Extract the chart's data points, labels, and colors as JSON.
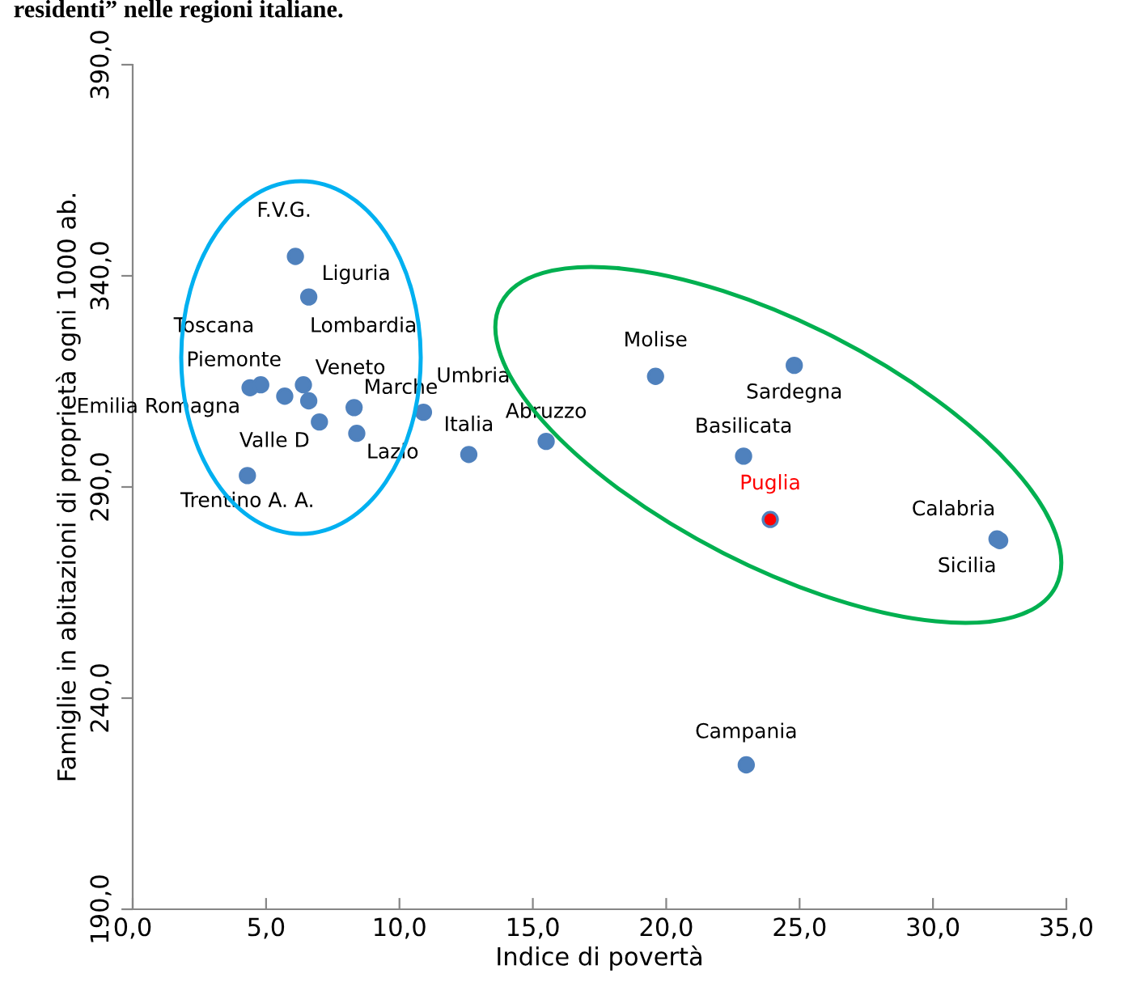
{
  "chart_data": {
    "type": "scatter",
    "title": "residenti” nelle regioni italiane.",
    "xlabel": "Indice di povertà",
    "ylabel": "Famiglie in abitazioni di proprietà ogni 1000 ab.",
    "xlim": [
      0,
      35
    ],
    "ylim": [
      190,
      390
    ],
    "xticks": [
      {
        "value": 0,
        "label": "0,0"
      },
      {
        "value": 5,
        "label": "5,0"
      },
      {
        "value": 10,
        "label": "10,0"
      },
      {
        "value": 15,
        "label": "15,0"
      },
      {
        "value": 20,
        "label": "20,0"
      },
      {
        "value": 25,
        "label": "25,0"
      },
      {
        "value": 30,
        "label": "30,0"
      },
      {
        "value": 35,
        "label": "35,0"
      }
    ],
    "yticks": [
      {
        "value": 190,
        "label": "190,0"
      },
      {
        "value": 240,
        "label": "240,0"
      },
      {
        "value": 290,
        "label": "290,0"
      },
      {
        "value": 340,
        "label": "340,0"
      },
      {
        "value": 390,
        "label": "390,0"
      }
    ],
    "grid": false,
    "legend": false,
    "marker": "circle",
    "series": [
      {
        "color": "#4f81bd",
        "x": [
          6.1,
          6.6,
          4.4,
          4.8,
          5.7,
          6.4,
          6.6,
          7.0,
          8.3,
          8.4,
          10.9,
          4.3,
          12.6,
          15.5,
          19.6,
          24.8,
          22.9,
          23.9,
          32.4,
          32.5,
          23.0
        ],
        "values": [
          344.6,
          335.0,
          313.5,
          314.2,
          311.5,
          314.2,
          310.4,
          305.4,
          308.8,
          302.7,
          307.7,
          292.7,
          297.7,
          300.8,
          316.2,
          318.8,
          297.3,
          282.3,
          277.7,
          277.3,
          224.2
        ],
        "colors": [
          "#4f81bd",
          "#4f81bd",
          "#4f81bd",
          "#4f81bd",
          "#4f81bd",
          "#4f81bd",
          "#4f81bd",
          "#4f81bd",
          "#4f81bd",
          "#4f81bd",
          "#4f81bd",
          "#4f81bd",
          "#4f81bd",
          "#4f81bd",
          "#4f81bd",
          "#4f81bd",
          "#4f81bd",
          "#ff0000",
          "#4f81bd",
          "#4f81bd",
          "#4f81bd"
        ]
      }
    ],
    "annotations": [
      {
        "text": "F.V.G.",
        "x": 6.1,
        "y": 344.6
      },
      {
        "text": "Liguria",
        "x": 6.6,
        "y": 335.0
      },
      {
        "text": "Emilia Romagna",
        "x": 4.4,
        "y": 313.5
      },
      {
        "text": "Toscana",
        "x": 4.8,
        "y": 314.2
      },
      {
        "text": "Piemonte",
        "x": 5.7,
        "y": 311.5
      },
      {
        "text": "Lombardia",
        "x": 6.4,
        "y": 314.2
      },
      {
        "text": "Veneto",
        "x": 6.6,
        "y": 310.4
      },
      {
        "text": "Valle D",
        "x": 7.0,
        "y": 305.4
      },
      {
        "text": "Marche",
        "x": 8.3,
        "y": 308.8
      },
      {
        "text": "Lazio",
        "x": 8.4,
        "y": 302.7
      },
      {
        "text": "Umbria",
        "x": 10.9,
        "y": 307.7
      },
      {
        "text": "Trentino A. A.",
        "x": 4.3,
        "y": 292.7
      },
      {
        "text": "Italia",
        "x": 12.6,
        "y": 297.7
      },
      {
        "text": "Abruzzo",
        "x": 15.5,
        "y": 300.8
      },
      {
        "text": "Molise",
        "x": 19.6,
        "y": 316.2
      },
      {
        "text": "Sardegna",
        "x": 24.8,
        "y": 318.8
      },
      {
        "text": "Basilicata",
        "x": 22.9,
        "y": 297.3
      },
      {
        "text": "Puglia",
        "x": 23.9,
        "y": 282.3
      },
      {
        "text": "Calabria",
        "x": 32.4,
        "y": 277.7
      },
      {
        "text": "Sicilia",
        "x": 32.5,
        "y": 277.3
      },
      {
        "text": "Campania",
        "x": 23.0,
        "y": 224.2
      }
    ]
  }
}
